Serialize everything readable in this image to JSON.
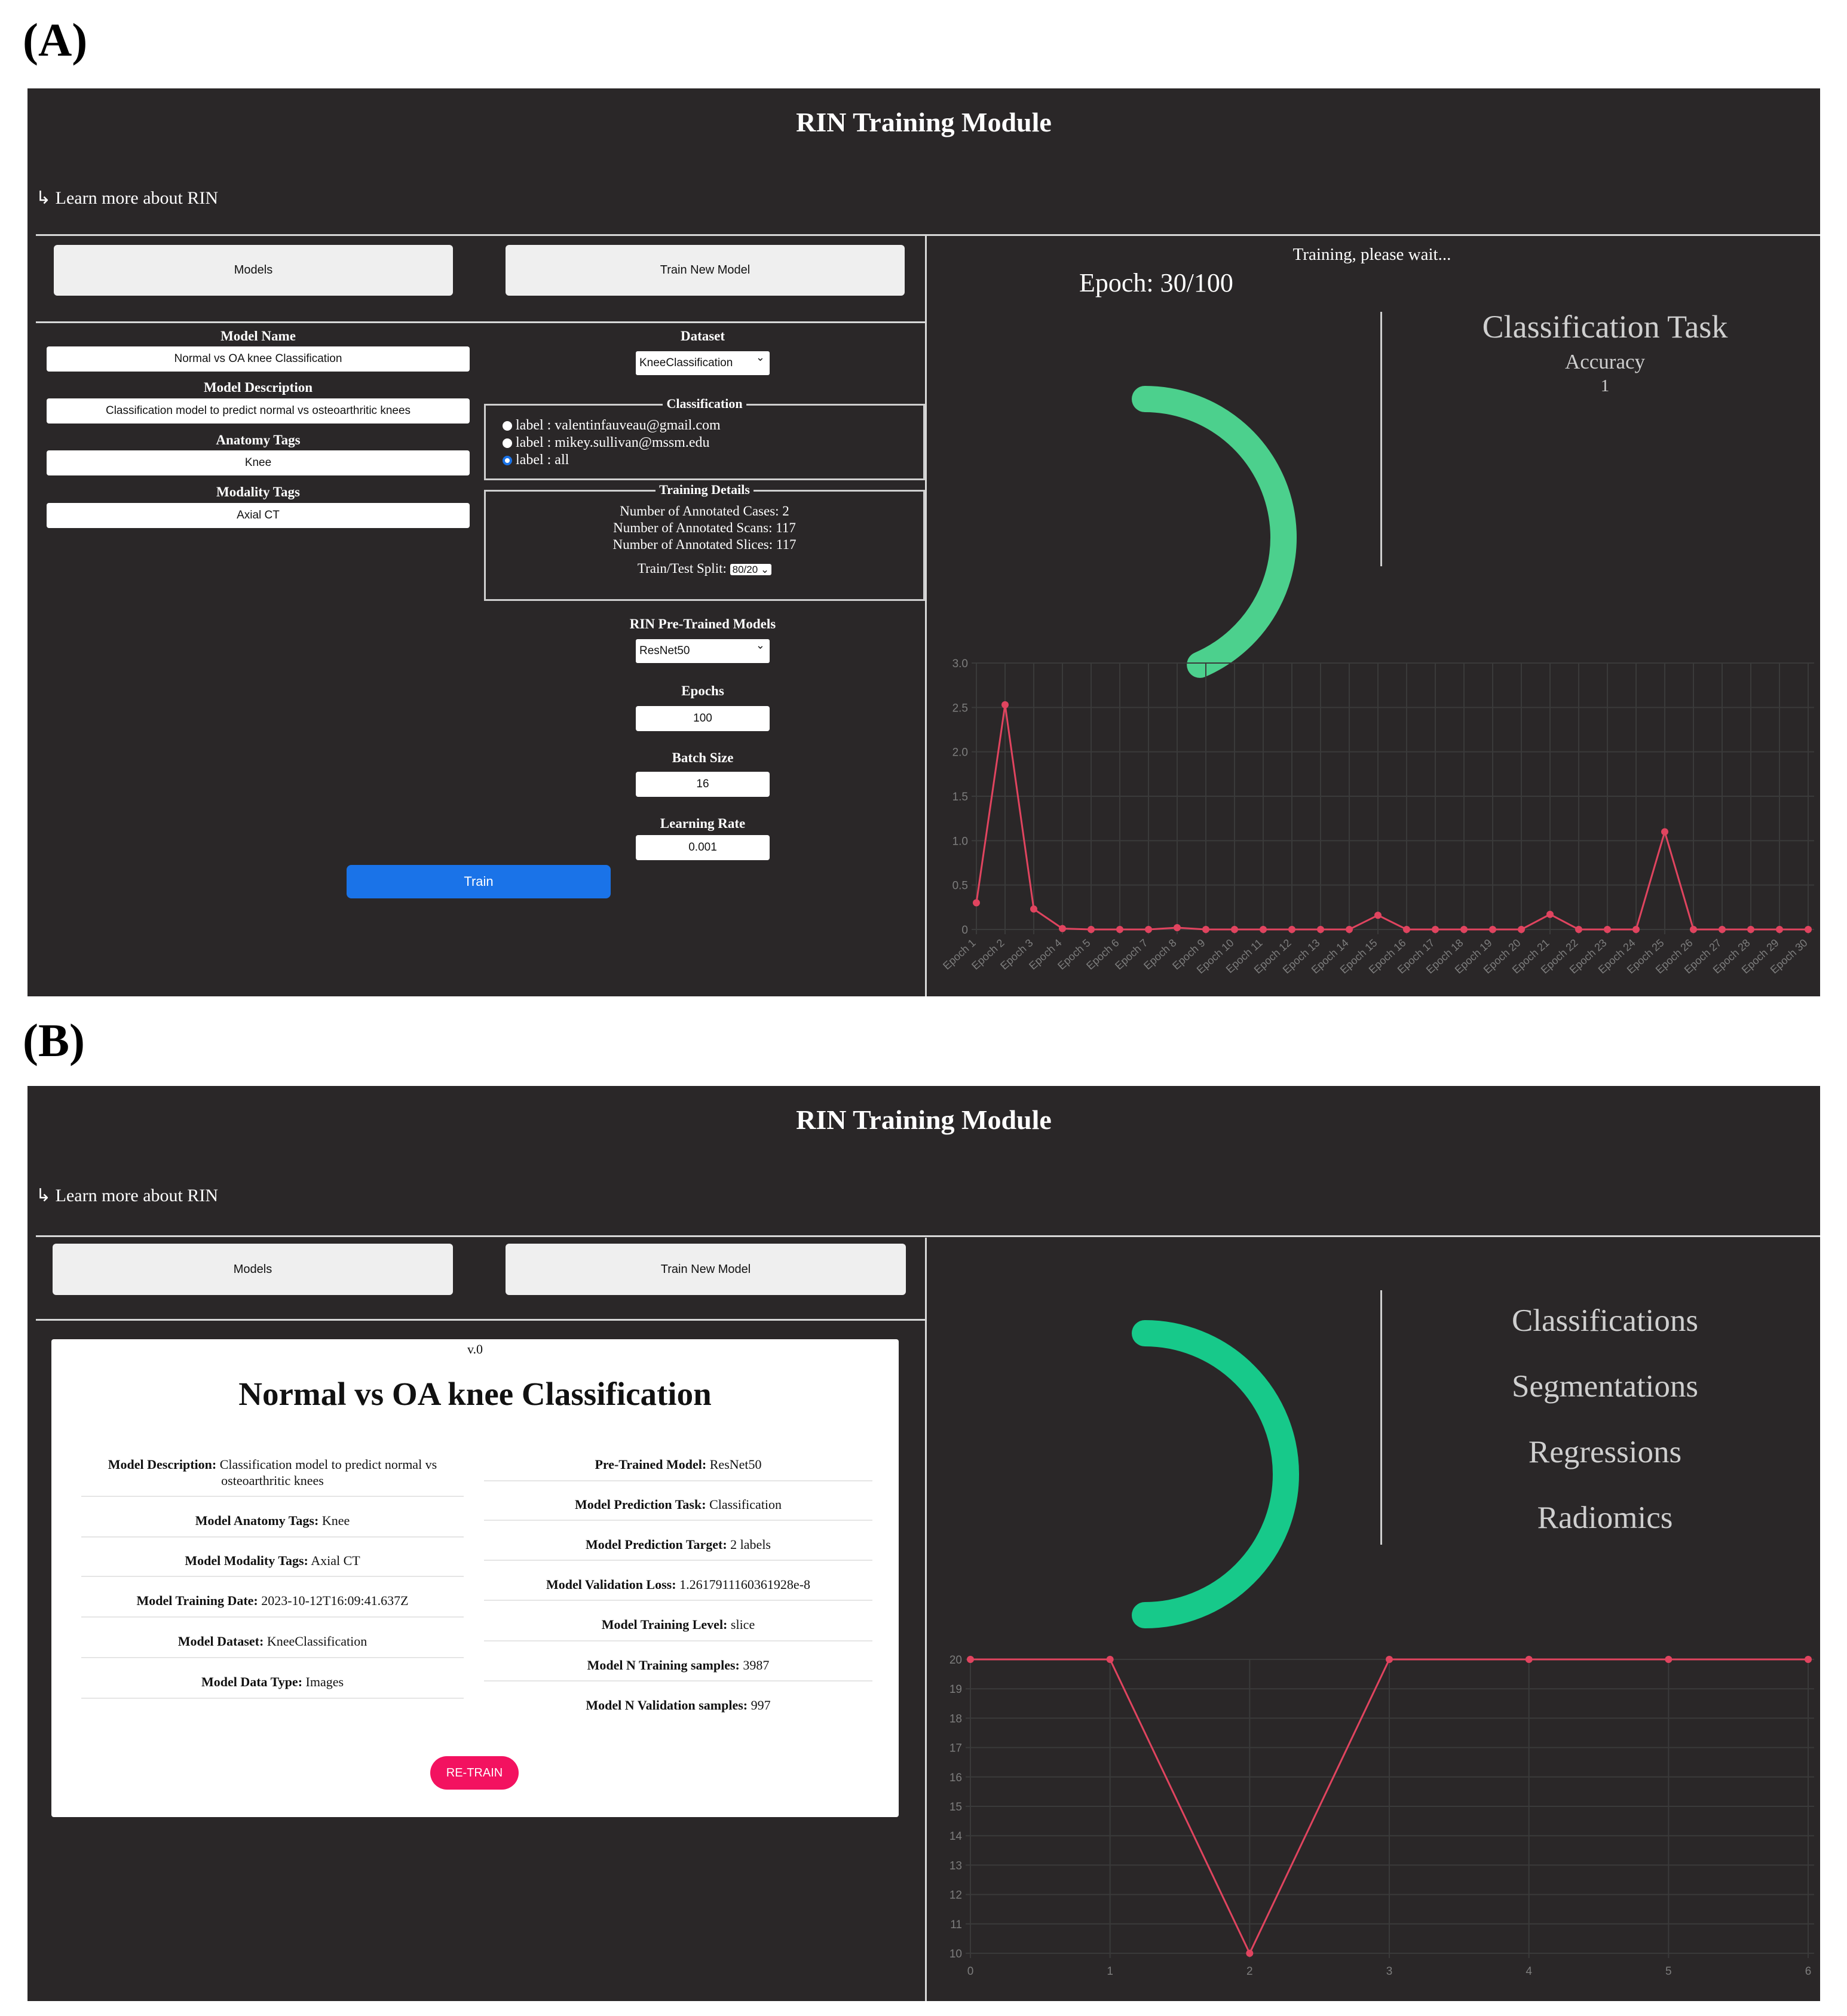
{
  "panels": [
    {
      "label": "(A)"
    },
    {
      "label": "(B)"
    }
  ],
  "app": {
    "title": "RIN Training Module",
    "learn_more": "Learn more about RIN",
    "nav": {
      "models": "Models",
      "train_new": "Train New Model"
    }
  },
  "panelA": {
    "form": {
      "model_name_label": "Model Name",
      "model_name_value": "Normal vs OA knee Classification",
      "model_description_label": "Model Description",
      "model_description_value": "Classification model to predict normal vs osteoarthritic knees",
      "anatomy_tags_label": "Anatomy Tags",
      "anatomy_tags_value": "Knee",
      "modality_tags_label": "Modality Tags",
      "modality_tags_value": "Axial CT"
    },
    "dataset": {
      "label": "Dataset",
      "selected": "KneeClassification",
      "classification_legend": "Classification",
      "options": [
        {
          "text": "label : valentinfauveau@gmail.com",
          "selected": false
        },
        {
          "text": "label : mikey.sullivan@mssm.edu",
          "selected": false
        },
        {
          "text": "label : all",
          "selected": true
        }
      ],
      "training_details_legend": "Training Details",
      "cases": "Number of Annotated Cases: 2",
      "scans": "Number of Annotated Scans: 117",
      "slices": "Number of Annotated Slices: 117",
      "split_label": "Train/Test Split:",
      "split_value": "80/20"
    },
    "pretrained": {
      "label": "RIN Pre-Trained Models",
      "selected": "ResNet50"
    },
    "epochs": {
      "label": "Epochs",
      "value": "100"
    },
    "batch_size": {
      "label": "Batch Size",
      "value": "16"
    },
    "learning_rate": {
      "label": "Learning Rate",
      "value": "0.001"
    },
    "train_button": "Train",
    "status": "Training, please wait...",
    "epoch_text": "Epoch: 30/100",
    "progress_fraction": 0.3,
    "task_title": "Classification Task",
    "metric_name": "Accuracy",
    "metric_value": "1",
    "colors": {
      "gauge": "#4cd08d",
      "loss": "#e0445f",
      "accent": "#1a73e8"
    }
  },
  "panelB": {
    "version": "v.0",
    "card_title": "Normal vs OA knee Classification",
    "left_rows": [
      {
        "key": "Model Description:",
        "value": "Classification model to predict normal vs",
        "value2": "osteoarthritic knees"
      },
      {
        "key": "Model Anatomy Tags:",
        "value": "Knee"
      },
      {
        "key": "Model Modality Tags:",
        "value": "Axial CT"
      },
      {
        "key": "Model Training Date:",
        "value": "2023-10-12T16:09:41.637Z"
      },
      {
        "key": "Model Dataset:",
        "value": "KneeClassification"
      },
      {
        "key": "Model Data Type:",
        "value": "Images"
      }
    ],
    "right_rows": [
      {
        "key": "Pre-Trained Model:",
        "value": "ResNet50"
      },
      {
        "key": "Model Prediction Task:",
        "value": "Classification"
      },
      {
        "key": "Model Prediction Target:",
        "value": "2 labels"
      },
      {
        "key": "Model Validation Loss:",
        "value": "1.2617911160361928e-8"
      },
      {
        "key": "Model Training Level:",
        "value": "slice"
      },
      {
        "key": "Model N Training samples:",
        "value": "3987"
      },
      {
        "key": "Model N Validation samples:",
        "value": "997"
      }
    ],
    "retrain_button": "RE-TRAIN",
    "menu": [
      "Classifications",
      "Segmentations",
      "Regressions",
      "Radiomics"
    ],
    "colors": {
      "gauge": "#17c98a",
      "line": "#e0445f"
    }
  },
  "chart_data": [
    {
      "type": "line",
      "title": "",
      "xlabel": "",
      "ylabel": "",
      "categories": [
        "Epoch 1",
        "Epoch 2",
        "Epoch 3",
        "Epoch 4",
        "Epoch 5",
        "Epoch 6",
        "Epoch 7",
        "Epoch 8",
        "Epoch 9",
        "Epoch 10",
        "Epoch 11",
        "Epoch 12",
        "Epoch 13",
        "Epoch 14",
        "Epoch 15",
        "Epoch 16",
        "Epoch 17",
        "Epoch 18",
        "Epoch 19",
        "Epoch 20",
        "Epoch 21",
        "Epoch 22",
        "Epoch 23",
        "Epoch 24",
        "Epoch 25",
        "Epoch 26",
        "Epoch 27",
        "Epoch 28",
        "Epoch 29",
        "Epoch 30"
      ],
      "values": [
        0.3,
        2.53,
        0.23,
        0.01,
        0.0,
        0.0,
        0.0,
        0.02,
        0.0,
        0.0,
        0.0,
        0.0,
        0.0,
        0.0,
        0.16,
        0.0,
        0.0,
        0.0,
        0.0,
        0.0,
        0.17,
        0.0,
        0.0,
        0.0,
        1.1,
        0.0,
        0.0,
        0.0,
        0.0,
        0.0
      ],
      "yticks": [
        "0",
        "0.5",
        "1.0",
        "1.5",
        "2.0",
        "2.5",
        "3.0"
      ],
      "ylim": [
        0,
        3
      ],
      "grid": true
    },
    {
      "type": "line",
      "title": "",
      "xlabel": "",
      "ylabel": "",
      "x": [
        0,
        1,
        2,
        3,
        4,
        5,
        6
      ],
      "values": [
        20,
        20,
        10,
        20,
        20,
        20,
        20
      ],
      "yticks": [
        "10",
        "11",
        "12",
        "13",
        "14",
        "15",
        "16",
        "17",
        "18",
        "19",
        "20"
      ],
      "xticks": [
        "0",
        "1",
        "2",
        "3",
        "4",
        "5",
        "6"
      ],
      "ylim": [
        10,
        20
      ],
      "grid": true
    }
  ]
}
